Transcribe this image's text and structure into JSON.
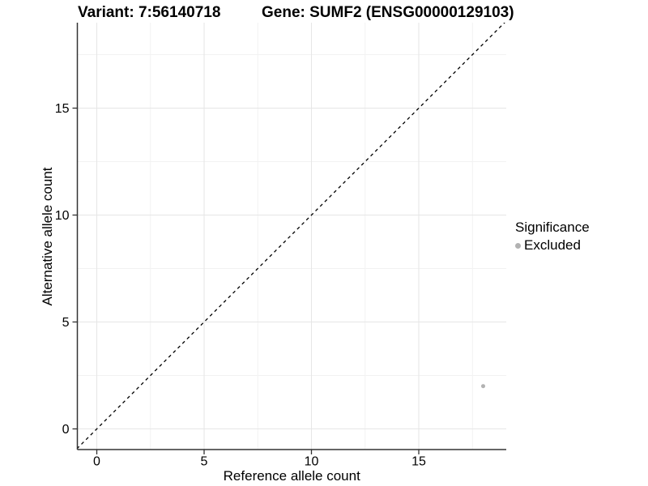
{
  "header": {
    "variant_title": "Variant: 7:56140718",
    "gene_title": "Gene: SUMF2 (ENSG00000129103)"
  },
  "chart_data": {
    "type": "scatter",
    "title": "Variant: 7:56140718   Gene: SUMF2 (ENSG00000129103)",
    "xlabel": "Reference allele count",
    "ylabel": "Alternative allele count",
    "xlim": [
      -0.9,
      19.1
    ],
    "ylim": [
      -0.95,
      19.05
    ],
    "x_ticks": [
      0,
      5,
      10,
      15
    ],
    "y_ticks": [
      0,
      5,
      10,
      15
    ],
    "x_tick_labels": [
      "0",
      "5",
      "10",
      "15"
    ],
    "y_tick_labels": [
      "0",
      "5",
      "10",
      "15"
    ],
    "x_minor_ticks": [
      2.5,
      7.5,
      12.5,
      17.5
    ],
    "y_minor_ticks": [
      2.5,
      7.5,
      12.5,
      17.5
    ],
    "grid": "major and minor, light gray, no top/right border",
    "reference_line": {
      "kind": "identity y=x",
      "style": "dashed",
      "color": "#000000"
    },
    "series": [
      {
        "name": "Excluded",
        "points": [
          {
            "x": 18,
            "y": 2
          }
        ],
        "color": "#b2b2b2"
      }
    ],
    "legend": {
      "title": "Significance",
      "position": "right",
      "entries": [
        {
          "label": "Excluded",
          "color": "#b2b2b2"
        }
      ]
    }
  },
  "colors": {
    "background": "#ffffff",
    "axis_line": "#333333",
    "tick_text": "#000000",
    "grid_major": "#e6e6e6",
    "grid_minor": "#f2f2f2",
    "point": "#b2b2b2",
    "dashed_line": "#000000"
  }
}
